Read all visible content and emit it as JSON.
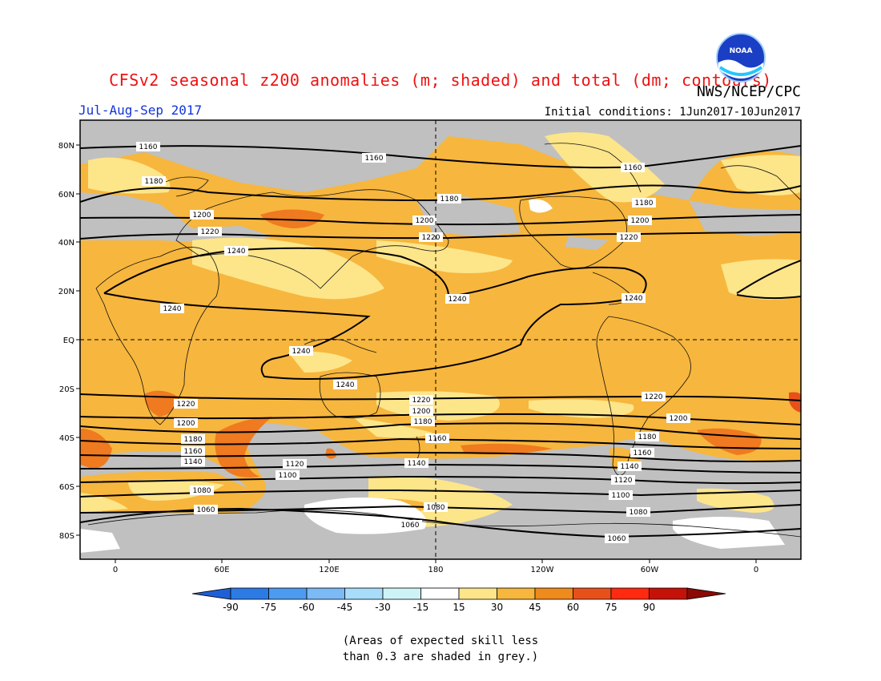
{
  "title": "CFSv2 seasonal z200 anomalies (m; shaded) and total (dm; contours)",
  "agency": "NWS/NCEP/CPC",
  "season": "Jul-Aug-Sep 2017",
  "initial_conditions": "Initial conditions: 1Jun2017-10Jun2017",
  "logo_text": "NOAA",
  "skill_note": [
    "(Areas of expected skill less",
    "than 0.3 are shaded in grey.)"
  ],
  "map": {
    "lat_labels": [
      "80N",
      "60N",
      "40N",
      "20N",
      "EQ",
      "20S",
      "40S",
      "60S",
      "80S"
    ],
    "lon_labels": [
      "0",
      "60E",
      "120E",
      "180",
      "120W",
      "60W",
      "0"
    ],
    "contour_labels": [
      "1160",
      "1180",
      "1200",
      "1220",
      "1240",
      "1100",
      "1120",
      "1140",
      "1080",
      "1060"
    ]
  },
  "colorbar": {
    "ticks": [
      "-90",
      "-75",
      "-60",
      "-45",
      "-30",
      "-15",
      "15",
      "30",
      "45",
      "60",
      "75",
      "90"
    ],
    "colors": [
      "#1f5fd6",
      "#2c7be5",
      "#4d9bf0",
      "#7cbaf6",
      "#a7dcfa",
      "#cdf3f7",
      "#ffffff",
      "#fde58a",
      "#f7b63d",
      "#ef8a1d",
      "#e8501a",
      "#ff2a10",
      "#c41208",
      "#8b0a05"
    ]
  },
  "palette": {
    "grey": "#c0c0c0",
    "light": "#fde58a",
    "orange": "#f7b63d",
    "dark": "#ef7a20",
    "red": "#e8501a",
    "white": "#ffffff"
  }
}
